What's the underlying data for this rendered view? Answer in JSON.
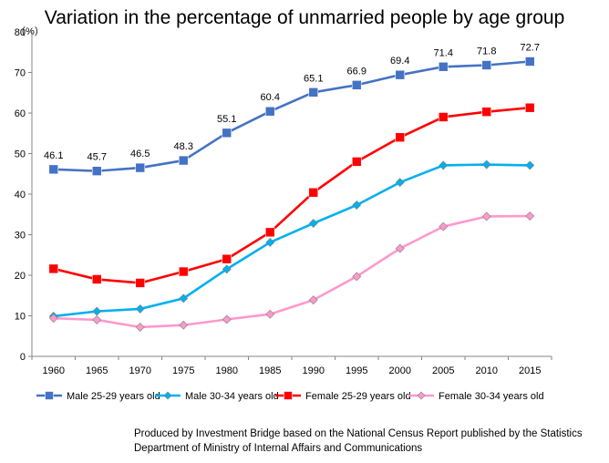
{
  "chart_data": {
    "type": "line",
    "title": "Variation in the percentage of unmarried people by age group",
    "ylabel": "（%）",
    "xlabel": "",
    "ylim": [
      0,
      80
    ],
    "yticks": [
      0,
      10,
      20,
      30,
      40,
      50,
      60,
      70,
      80
    ],
    "grid": false,
    "legend_position": "bottom",
    "categories": [
      "1960",
      "1965",
      "1970",
      "1975",
      "1980",
      "1985",
      "1990",
      "1995",
      "2000",
      "2005",
      "2010",
      "2015"
    ],
    "series": [
      {
        "name": "Male 25-29 years old",
        "color": "#4472C4",
        "marker": "square",
        "values": [
          46.1,
          45.7,
          46.5,
          48.3,
          55.1,
          60.4,
          65.1,
          66.9,
          69.4,
          71.4,
          71.8,
          72.7
        ],
        "labels": [
          "46.1",
          "45.7",
          "46.5",
          "48.3",
          "55.1",
          "60.4",
          "65.1",
          "66.9",
          "69.4",
          "71.4",
          "71.8",
          "72.7"
        ]
      },
      {
        "name": "Male 30-34 years old",
        "color": "#00B0F0",
        "marker": "diamond",
        "values": [
          9.9,
          11.1,
          11.7,
          14.3,
          21.5,
          28.1,
          32.8,
          37.3,
          42.9,
          47.1,
          47.3,
          47.1
        ]
      },
      {
        "name": "Female 25-29 years old",
        "color": "#FF0000",
        "marker": "square",
        "values": [
          21.6,
          19.0,
          18.1,
          20.9,
          24.0,
          30.6,
          40.4,
          48.0,
          54.0,
          59.0,
          60.3,
          61.3
        ]
      },
      {
        "name": "Female 30-34 years old",
        "color": "#FF99CC",
        "marker": "diamond",
        "values": [
          9.4,
          9.0,
          7.2,
          7.7,
          9.1,
          10.4,
          13.9,
          19.7,
          26.6,
          32.0,
          34.5,
          34.6
        ]
      }
    ]
  },
  "source": {
    "line1": "Produced by Investment Bridge  based on the National Census Report published by the Statistics",
    "line2": "Department of Ministry of Internal Affairs and Communications"
  }
}
